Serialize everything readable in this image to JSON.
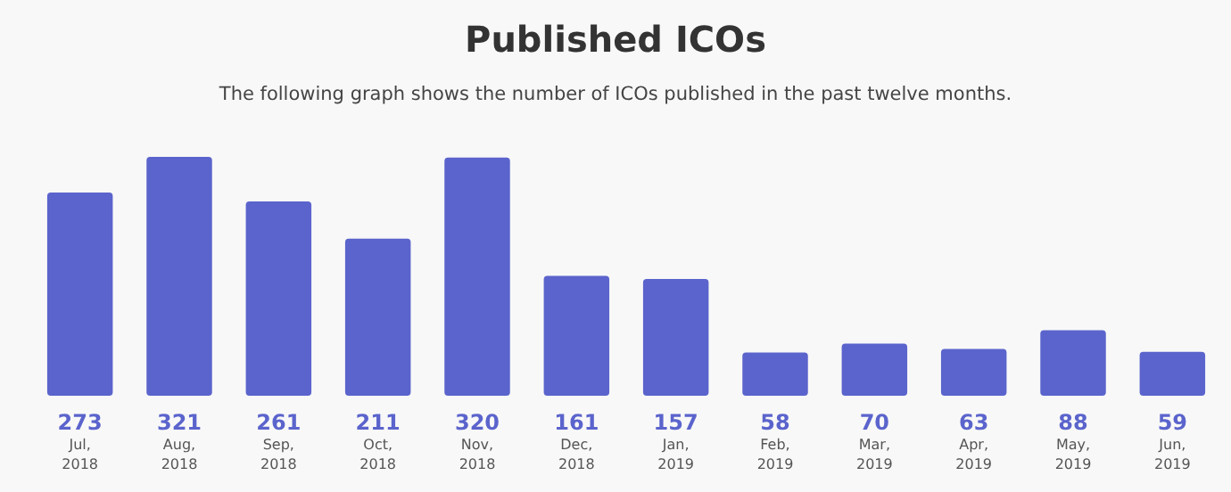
{
  "chart_data": {
    "type": "bar",
    "title": "Published ICOs",
    "subtitle": "The following graph shows the number of ICOs published in the past twelve months.",
    "categories": [
      "Jul, 2018",
      "Aug, 2018",
      "Sep, 2018",
      "Oct, 2018",
      "Nov, 2018",
      "Dec, 2018",
      "Jan, 2019",
      "Feb, 2019",
      "Mar, 2019",
      "Apr, 2019",
      "May, 2019",
      "Jun, 2019"
    ],
    "values": [
      273,
      321,
      261,
      211,
      320,
      161,
      157,
      58,
      70,
      63,
      88,
      59
    ],
    "color": "#5b64cc",
    "data_labels": true
  }
}
